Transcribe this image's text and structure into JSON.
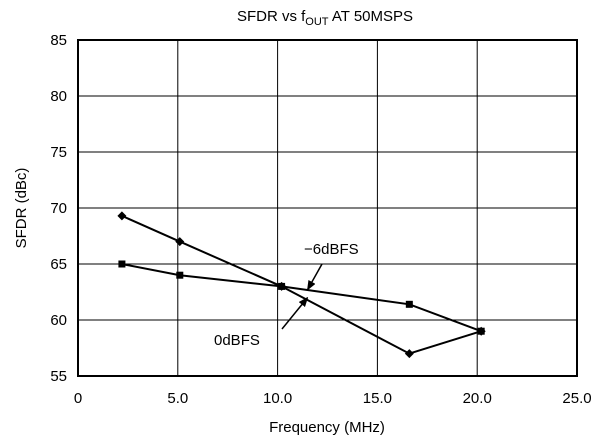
{
  "chart_data": {
    "type": "line",
    "title": "SFDR vs f",
    "title_sub": "OUT",
    "title_suffix": " AT 50MSPS",
    "xlabel": "Frequency (MHz)",
    "ylabel": "SFDR (dBc)",
    "xlim": [
      0,
      25
    ],
    "ylim": [
      55,
      85
    ],
    "x_ticks": [
      0,
      5,
      10,
      15,
      20,
      25
    ],
    "x_tick_labels": [
      "0",
      "5.0",
      "10.0",
      "15.0",
      "20.0",
      "25.0"
    ],
    "y_ticks": [
      55,
      60,
      65,
      70,
      75,
      80,
      85
    ],
    "y_tick_labels": [
      "55",
      "60",
      "65",
      "70",
      "75",
      "80",
      "85"
    ],
    "grid": true,
    "series": [
      {
        "name": "0dBFS",
        "marker": "diamond",
        "x": [
          2.2,
          5.1,
          10.2,
          16.6,
          20.2
        ],
        "y": [
          69.3,
          67.0,
          63.0,
          57.0,
          59.0
        ]
      },
      {
        "name": "−6dBFS",
        "marker": "square",
        "x": [
          2.2,
          5.1,
          10.2,
          16.6,
          20.2
        ],
        "y": [
          65.0,
          64.0,
          63.0,
          61.4,
          59.0
        ]
      }
    ],
    "annotations": [
      {
        "text": "−6dBFS",
        "target_series": 1,
        "arrow_to": [
          11.5,
          62.7
        ]
      },
      {
        "text": "0dBFS",
        "target_series": 0,
        "arrow_to": [
          11.5,
          62.0
        ]
      }
    ]
  }
}
